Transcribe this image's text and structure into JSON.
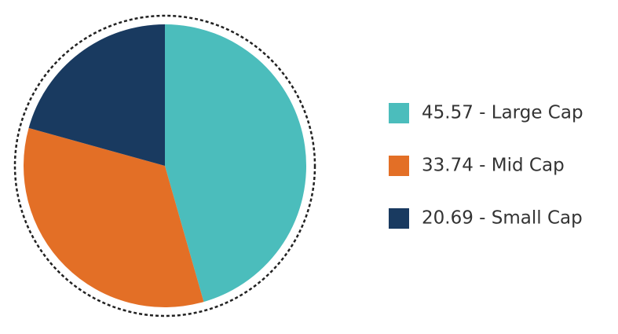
{
  "chart_data": {
    "type": "pie",
    "categories": [
      "45.57 - Large Cap",
      "33.74 - Mid Cap",
      "20.69 - Small Cap"
    ],
    "values": [
      45.57,
      33.74,
      20.69
    ],
    "colors": [
      "#4bbdbc",
      "#e36f26",
      "#193a60"
    ]
  }
}
